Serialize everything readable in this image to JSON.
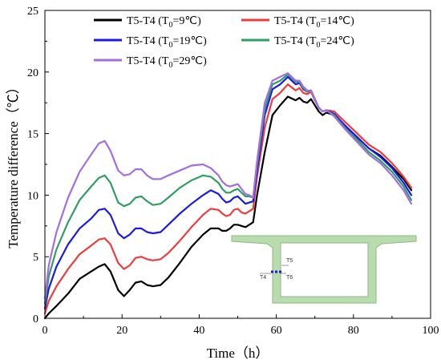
{
  "chart_data": {
    "type": "line",
    "xlabel": "Time（h）",
    "ylabel": "Temperature difference（℃）",
    "xlim": [
      0,
      100
    ],
    "ylim": [
      0,
      25
    ],
    "xticks": [
      0,
      20,
      40,
      60,
      80,
      100
    ],
    "yticks": [
      0,
      5,
      10,
      15,
      20,
      25
    ],
    "legend_position": "top",
    "series": [
      {
        "legend": {
          "prefix": "T5-T4 (T",
          "sub": "0",
          "suffix": "=9℃)"
        },
        "color": "#000000",
        "points": [
          [
            0,
            0
          ],
          [
            1,
            0.4
          ],
          [
            3,
            1.0
          ],
          [
            6,
            2.0
          ],
          [
            9,
            3.2
          ],
          [
            12,
            3.8
          ],
          [
            14,
            4.2
          ],
          [
            15.5,
            4.4
          ],
          [
            17,
            3.8
          ],
          [
            19,
            2.3
          ],
          [
            20.5,
            1.8
          ],
          [
            22,
            2.3
          ],
          [
            23.5,
            2.9
          ],
          [
            25,
            3.0
          ],
          [
            26.5,
            2.7
          ],
          [
            28,
            2.6
          ],
          [
            30,
            2.7
          ],
          [
            32,
            3.3
          ],
          [
            35,
            4.5
          ],
          [
            38,
            5.8
          ],
          [
            41,
            6.8
          ],
          [
            43,
            7.3
          ],
          [
            45,
            7.3
          ],
          [
            46,
            7.1
          ],
          [
            47,
            7.1
          ],
          [
            48,
            7.3
          ],
          [
            49,
            7.6
          ],
          [
            50,
            7.6
          ],
          [
            51,
            7.5
          ],
          [
            52,
            7.4
          ],
          [
            53,
            7.6
          ],
          [
            54,
            7.8
          ],
          [
            55,
            10.0
          ],
          [
            57,
            13.5
          ],
          [
            59,
            16.5
          ],
          [
            61,
            17.3
          ],
          [
            63,
            18.0
          ],
          [
            65,
            17.7
          ],
          [
            66,
            17.9
          ],
          [
            67,
            17.6
          ],
          [
            68,
            17.5
          ],
          [
            69,
            17.8
          ],
          [
            70,
            17.3
          ],
          [
            71,
            16.8
          ],
          [
            72,
            16.5
          ],
          [
            73,
            16.7
          ],
          [
            75,
            16.5
          ],
          [
            78,
            15.6
          ],
          [
            81,
            14.7
          ],
          [
            84,
            13.8
          ],
          [
            87,
            13.2
          ],
          [
            90,
            12.3
          ],
          [
            93,
            11.3
          ],
          [
            95,
            10.4
          ]
        ]
      },
      {
        "legend": {
          "prefix": "T5-T4 (T",
          "sub": "0",
          "suffix": "=14℃)"
        },
        "color": "#ef3b3b",
        "points": [
          [
            0,
            0.4
          ],
          [
            1,
            1.4
          ],
          [
            3,
            2.6
          ],
          [
            6,
            4.0
          ],
          [
            9,
            5.2
          ],
          [
            12,
            5.9
          ],
          [
            14,
            6.4
          ],
          [
            15.5,
            6.5
          ],
          [
            17,
            6.0
          ],
          [
            19,
            4.5
          ],
          [
            20.5,
            4.0
          ],
          [
            22,
            4.3
          ],
          [
            23.5,
            4.9
          ],
          [
            25,
            5.0
          ],
          [
            26.5,
            4.8
          ],
          [
            28,
            4.7
          ],
          [
            30,
            4.8
          ],
          [
            32,
            5.3
          ],
          [
            35,
            6.3
          ],
          [
            38,
            7.4
          ],
          [
            41,
            8.4
          ],
          [
            43,
            8.9
          ],
          [
            45,
            8.8
          ],
          [
            46,
            8.5
          ],
          [
            47,
            8.3
          ],
          [
            48,
            8.4
          ],
          [
            49,
            8.8
          ],
          [
            50,
            8.9
          ],
          [
            51,
            8.6
          ],
          [
            52,
            8.5
          ],
          [
            53,
            8.7
          ],
          [
            54,
            8.9
          ],
          [
            55,
            11.5
          ],
          [
            57,
            15.5
          ],
          [
            59,
            17.8
          ],
          [
            61,
            18.3
          ],
          [
            63,
            19.0
          ],
          [
            65,
            18.5
          ],
          [
            66,
            18.7
          ],
          [
            67,
            18.3
          ],
          [
            68,
            18.2
          ],
          [
            69,
            18.4
          ],
          [
            70,
            17.7
          ],
          [
            71,
            17.1
          ],
          [
            72,
            16.8
          ],
          [
            73,
            16.9
          ],
          [
            75,
            16.8
          ],
          [
            78,
            15.9
          ],
          [
            81,
            15.0
          ],
          [
            84,
            14.1
          ],
          [
            87,
            13.5
          ],
          [
            90,
            12.6
          ],
          [
            93,
            11.5
          ],
          [
            95,
            10.6
          ]
        ]
      },
      {
        "legend": {
          "prefix": "T5-T4 (T",
          "sub": "0",
          "suffix": "=19℃)"
        },
        "color": "#1a1ae6",
        "points": [
          [
            0,
            0.8
          ],
          [
            1,
            2.4
          ],
          [
            3,
            4.2
          ],
          [
            6,
            6.0
          ],
          [
            9,
            7.3
          ],
          [
            12,
            8.1
          ],
          [
            14,
            8.8
          ],
          [
            15.5,
            8.9
          ],
          [
            17,
            8.4
          ],
          [
            19,
            6.9
          ],
          [
            20.5,
            6.5
          ],
          [
            22,
            6.8
          ],
          [
            23.5,
            7.3
          ],
          [
            25,
            7.3
          ],
          [
            26.5,
            7.0
          ],
          [
            28,
            6.9
          ],
          [
            30,
            7.0
          ],
          [
            32,
            7.6
          ],
          [
            35,
            8.5
          ],
          [
            38,
            9.3
          ],
          [
            41,
            10.0
          ],
          [
            43,
            10.4
          ],
          [
            45,
            10.1
          ],
          [
            46,
            9.7
          ],
          [
            47,
            9.4
          ],
          [
            48,
            9.5
          ],
          [
            49,
            9.8
          ],
          [
            50,
            9.9
          ],
          [
            51,
            9.6
          ],
          [
            52,
            9.3
          ],
          [
            53,
            9.4
          ],
          [
            54,
            9.5
          ],
          [
            55,
            12.0
          ],
          [
            57,
            16.5
          ],
          [
            59,
            18.6
          ],
          [
            61,
            19.0
          ],
          [
            63,
            19.6
          ],
          [
            65,
            19.0
          ],
          [
            66,
            19.1
          ],
          [
            67,
            18.6
          ],
          [
            68,
            18.4
          ],
          [
            69,
            18.5
          ],
          [
            70,
            17.8
          ],
          [
            71,
            17.1
          ],
          [
            72,
            16.8
          ],
          [
            73,
            16.9
          ],
          [
            75,
            16.6
          ],
          [
            78,
            15.6
          ],
          [
            81,
            14.7
          ],
          [
            84,
            13.8
          ],
          [
            87,
            13.1
          ],
          [
            90,
            12.2
          ],
          [
            93,
            11.0
          ],
          [
            95,
            10.0
          ]
        ]
      },
      {
        "legend": {
          "prefix": "T5-T4 (T",
          "sub": "0",
          "suffix": "=24℃)"
        },
        "color": "#2e9e63",
        "points": [
          [
            0,
            1.2
          ],
          [
            1,
            3.4
          ],
          [
            3,
            5.6
          ],
          [
            6,
            7.8
          ],
          [
            9,
            9.6
          ],
          [
            12,
            10.7
          ],
          [
            14,
            11.4
          ],
          [
            15.5,
            11.6
          ],
          [
            17,
            11.0
          ],
          [
            19,
            9.4
          ],
          [
            20.5,
            9.1
          ],
          [
            22,
            9.3
          ],
          [
            23.5,
            9.8
          ],
          [
            25,
            9.9
          ],
          [
            26.5,
            9.5
          ],
          [
            28,
            9.2
          ],
          [
            30,
            9.3
          ],
          [
            32,
            9.8
          ],
          [
            35,
            10.6
          ],
          [
            38,
            11.2
          ],
          [
            41,
            11.6
          ],
          [
            43,
            11.5
          ],
          [
            45,
            11.0
          ],
          [
            46,
            10.5
          ],
          [
            47,
            10.2
          ],
          [
            48,
            10.2
          ],
          [
            49,
            10.4
          ],
          [
            50,
            10.5
          ],
          [
            51,
            10.2
          ],
          [
            52,
            9.9
          ],
          [
            53,
            9.9
          ],
          [
            54,
            9.8
          ],
          [
            55,
            12.5
          ],
          [
            57,
            17.0
          ],
          [
            59,
            19.0
          ],
          [
            61,
            19.3
          ],
          [
            63,
            19.8
          ],
          [
            65,
            19.2
          ],
          [
            66,
            19.2
          ],
          [
            67,
            18.7
          ],
          [
            68,
            18.4
          ],
          [
            69,
            18.5
          ],
          [
            70,
            17.8
          ],
          [
            71,
            17.1
          ],
          [
            72,
            16.8
          ],
          [
            73,
            16.9
          ],
          [
            75,
            16.5
          ],
          [
            78,
            15.4
          ],
          [
            81,
            14.5
          ],
          [
            84,
            13.5
          ],
          [
            87,
            12.8
          ],
          [
            90,
            11.9
          ],
          [
            93,
            10.7
          ],
          [
            95,
            9.6
          ]
        ]
      },
      {
        "legend": {
          "prefix": "T5-T4 (T",
          "sub": "0",
          "suffix": "=29℃)"
        },
        "color": "#a36ee0",
        "points": [
          [
            0,
            1.6
          ],
          [
            1,
            4.3
          ],
          [
            3,
            7.0
          ],
          [
            6,
            9.8
          ],
          [
            9,
            11.9
          ],
          [
            12,
            13.3
          ],
          [
            14,
            14.2
          ],
          [
            15.5,
            14.4
          ],
          [
            17,
            13.6
          ],
          [
            19,
            12.0
          ],
          [
            20.5,
            11.6
          ],
          [
            22,
            11.7
          ],
          [
            23.5,
            12.1
          ],
          [
            25,
            12.1
          ],
          [
            26.5,
            11.6
          ],
          [
            28,
            11.3
          ],
          [
            30,
            11.3
          ],
          [
            32,
            11.6
          ],
          [
            35,
            12.0
          ],
          [
            38,
            12.4
          ],
          [
            41,
            12.5
          ],
          [
            43,
            12.2
          ],
          [
            45,
            11.6
          ],
          [
            46,
            11.1
          ],
          [
            47,
            10.8
          ],
          [
            48,
            10.7
          ],
          [
            49,
            10.8
          ],
          [
            50,
            10.9
          ],
          [
            51,
            10.5
          ],
          [
            52,
            10.1
          ],
          [
            53,
            10.0
          ],
          [
            54,
            9.8
          ],
          [
            55,
            12.8
          ],
          [
            57,
            17.5
          ],
          [
            59,
            19.3
          ],
          [
            61,
            19.6
          ],
          [
            63,
            19.9
          ],
          [
            65,
            19.3
          ],
          [
            66,
            19.3
          ],
          [
            67,
            18.8
          ],
          [
            68,
            18.5
          ],
          [
            69,
            18.5
          ],
          [
            70,
            17.8
          ],
          [
            71,
            17.1
          ],
          [
            72,
            16.8
          ],
          [
            73,
            16.9
          ],
          [
            75,
            16.4
          ],
          [
            78,
            15.3
          ],
          [
            81,
            14.3
          ],
          [
            84,
            13.3
          ],
          [
            87,
            12.6
          ],
          [
            90,
            11.6
          ],
          [
            93,
            10.4
          ],
          [
            95,
            9.3
          ]
        ]
      }
    ],
    "inset": {
      "fill": "#b9dcae",
      "stroke": "#8cb882",
      "sensor_color": "#1a1ae6",
      "labels": {
        "t4": "T4",
        "t5": "T5",
        "t6": "T6"
      }
    }
  }
}
